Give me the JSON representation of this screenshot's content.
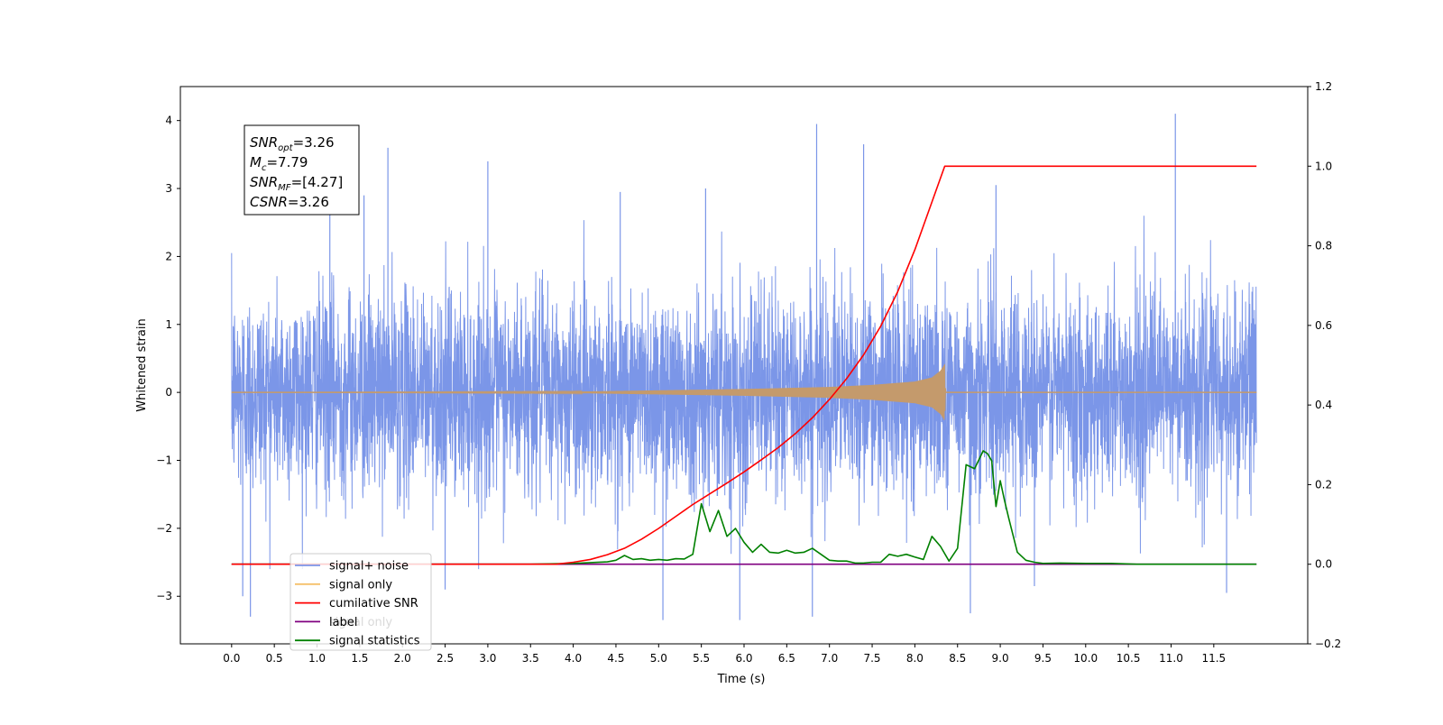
{
  "chart_data": {
    "type": "line",
    "xlabel": "Time (s)",
    "ylabel": "Whitened strain",
    "xlim": [
      -0.6,
      12.6
    ],
    "ylim": [
      -3.7,
      4.5
    ],
    "y2lim": [
      -0.2,
      1.2
    ],
    "x_ticks": [
      "0.0",
      "0.5",
      "1.0",
      "1.5",
      "2.0",
      "2.5",
      "3.0",
      "3.5",
      "4.0",
      "4.5",
      "5.0",
      "5.5",
      "6.0",
      "6.5",
      "7.0",
      "7.5",
      "8.0",
      "8.5",
      "9.0",
      "9.5",
      "10.0",
      "10.5",
      "11.0",
      "11.5"
    ],
    "y_ticks": [
      "−3",
      "−2",
      "−1",
      "0",
      "1",
      "2",
      "3",
      "4"
    ],
    "y2_ticks": [
      "−0.2",
      "0.0",
      "0.2",
      "0.4",
      "0.6",
      "0.8",
      "1.0",
      "1.2"
    ],
    "annotation": {
      "lines": [
        {
          "sym": "SNR",
          "sub": "opt",
          "value": "=3.26"
        },
        {
          "sym": "M",
          "sub": "c",
          "value": "=7.79"
        },
        {
          "sym": "SNR",
          "sub": "MF",
          "value": "=[4.27]"
        },
        {
          "sym": "CSNR",
          "sub": "",
          "value": "=3.26"
        }
      ]
    },
    "legend": {
      "placement": "lower-left",
      "entries": [
        {
          "label": "signal+ noise",
          "color": "#7b96e8"
        },
        {
          "label": "signal only",
          "color": "#f5c06a"
        },
        {
          "label": "cumilative SNR",
          "color": "#ff0000"
        },
        {
          "label": "label",
          "color": "#800080"
        },
        {
          "label": "signal statistics",
          "color": "#008000"
        }
      ],
      "overlapped_text": "signal only"
    },
    "series": [
      {
        "name": "signal+ noise",
        "axis": "left",
        "color": "#7b96e8",
        "x_range": [
          0.0,
          12.0
        ],
        "typical_amplitude": 1.7,
        "spike_peaks": [
          {
            "x": 0.13,
            "y": -3.0
          },
          {
            "x": 0.22,
            "y": -3.3
          },
          {
            "x": 1.15,
            "y": 3.15
          },
          {
            "x": 1.55,
            "y": 2.9
          },
          {
            "x": 1.83,
            "y": 3.6
          },
          {
            "x": 2.5,
            "y": -2.9
          },
          {
            "x": 3.0,
            "y": 3.4
          },
          {
            "x": 4.55,
            "y": 2.95
          },
          {
            "x": 5.05,
            "y": -3.35
          },
          {
            "x": 5.55,
            "y": 3.0
          },
          {
            "x": 5.95,
            "y": -3.35
          },
          {
            "x": 6.85,
            "y": 3.95
          },
          {
            "x": 6.8,
            "y": -3.3
          },
          {
            "x": 7.4,
            "y": 3.65
          },
          {
            "x": 8.65,
            "y": -3.25
          },
          {
            "x": 8.95,
            "y": 3.05
          },
          {
            "x": 9.4,
            "y": -2.85
          },
          {
            "x": 11.05,
            "y": 4.1
          },
          {
            "x": 11.65,
            "y": -2.95
          }
        ]
      },
      {
        "name": "signal only",
        "axis": "left",
        "color": "#f5c06a",
        "x": [
          0.0,
          4.0,
          5.0,
          6.0,
          7.0,
          7.5,
          8.0,
          8.2,
          8.3,
          8.35,
          8.36,
          12.0
        ],
        "envelope": [
          0.0,
          0.01,
          0.03,
          0.05,
          0.08,
          0.11,
          0.16,
          0.22,
          0.32,
          0.42,
          0.0,
          0.0
        ]
      },
      {
        "name": "cumilative SNR",
        "axis": "right",
        "color": "#ff0000",
        "x": [
          0.0,
          3.8,
          4.0,
          4.2,
          4.4,
          4.6,
          4.8,
          5.0,
          5.2,
          5.4,
          5.6,
          5.8,
          6.0,
          6.2,
          6.4,
          6.6,
          6.8,
          7.0,
          7.2,
          7.4,
          7.6,
          7.8,
          8.0,
          8.1,
          8.2,
          8.3,
          8.35,
          12.0
        ],
        "values": [
          0.0,
          0.0,
          0.005,
          0.012,
          0.024,
          0.04,
          0.063,
          0.09,
          0.12,
          0.15,
          0.177,
          0.204,
          0.232,
          0.262,
          0.293,
          0.328,
          0.368,
          0.414,
          0.466,
          0.526,
          0.598,
          0.685,
          0.79,
          0.85,
          0.91,
          0.97,
          1.0,
          1.0
        ]
      },
      {
        "name": "label",
        "axis": "right",
        "color": "#800080",
        "x": [
          0.0,
          12.0
        ],
        "values": [
          0.0,
          0.0
        ]
      },
      {
        "name": "signal statistics",
        "axis": "right",
        "color": "#008000",
        "x": [
          0.0,
          3.5,
          4.0,
          4.4,
          4.5,
          4.6,
          4.7,
          4.8,
          4.9,
          5.0,
          5.1,
          5.2,
          5.3,
          5.4,
          5.5,
          5.6,
          5.7,
          5.8,
          5.9,
          6.0,
          6.1,
          6.2,
          6.3,
          6.4,
          6.5,
          6.6,
          6.7,
          6.8,
          6.9,
          7.0,
          7.1,
          7.2,
          7.3,
          7.4,
          7.5,
          7.6,
          7.7,
          7.8,
          7.9,
          8.0,
          8.1,
          8.2,
          8.3,
          8.4,
          8.5,
          8.6,
          8.7,
          8.8,
          8.85,
          8.9,
          8.95,
          9.0,
          9.05,
          9.1,
          9.2,
          9.3,
          9.4,
          9.5,
          9.7,
          10.0,
          10.3,
          10.6,
          12.0
        ],
        "values": [
          0.0,
          0.0,
          0.002,
          0.006,
          0.01,
          0.022,
          0.012,
          0.014,
          0.01,
          0.012,
          0.01,
          0.014,
          0.013,
          0.025,
          0.152,
          0.082,
          0.135,
          0.07,
          0.09,
          0.055,
          0.03,
          0.05,
          0.03,
          0.028,
          0.035,
          0.028,
          0.03,
          0.04,
          0.025,
          0.01,
          0.008,
          0.008,
          0.003,
          0.003,
          0.005,
          0.005,
          0.025,
          0.02,
          0.025,
          0.018,
          0.012,
          0.07,
          0.045,
          0.008,
          0.04,
          0.25,
          0.24,
          0.285,
          0.278,
          0.26,
          0.145,
          0.21,
          0.16,
          0.115,
          0.03,
          0.01,
          0.005,
          0.002,
          0.003,
          0.002,
          0.002,
          0.0,
          0.0
        ]
      }
    ]
  }
}
